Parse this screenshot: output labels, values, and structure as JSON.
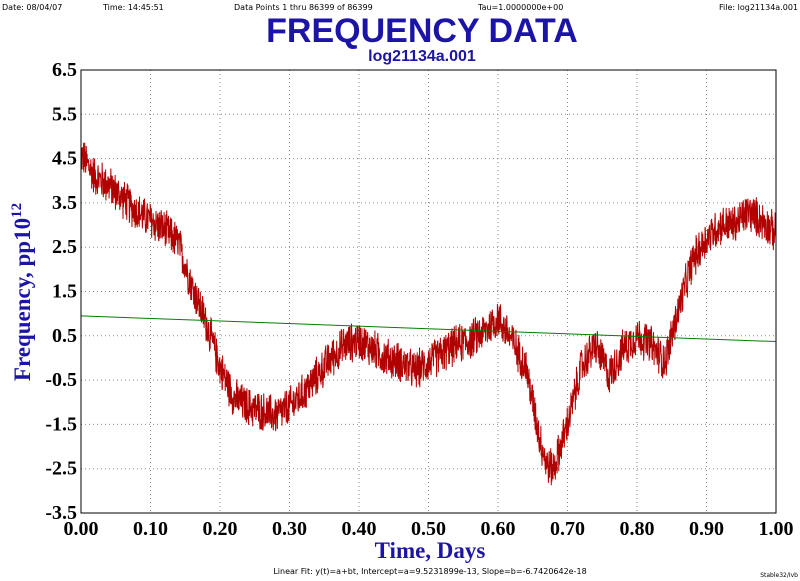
{
  "header": {
    "date": "Date: 08/04/07",
    "time": "Time: 14:45:51",
    "points": "Data Points 1 thru 86399 of 86399",
    "tau": "Tau=1.0000000e+00",
    "file": "File: log21134a.001"
  },
  "footer": {
    "fit": "Linear Fit: y(t)=a+bt, Intercept=a=9.5231899e-13, Slope=b=-6.7420642e-18",
    "credit": "Stable32/Ivb"
  },
  "colors": {
    "title": "#1c14a6",
    "data": "#b00000",
    "fit": "#008000",
    "grid": "#8a8a8a",
    "axis": "#000000"
  },
  "chart_data": {
    "type": "line",
    "title": "FREQUENCY DATA",
    "subtitle": "log21134a.001",
    "xlabel": "Time, Days",
    "ylabel": "Frequency, pp10",
    "ylabel_exponent": "12",
    "xlim": [
      0.0,
      1.0
    ],
    "ylim": [
      -3.5,
      6.5
    ],
    "x_ticks": [
      "0.00",
      "0.10",
      "0.20",
      "0.30",
      "0.40",
      "0.50",
      "0.60",
      "0.70",
      "0.80",
      "0.90",
      "1.00"
    ],
    "y_ticks": [
      "6.5",
      "5.5",
      "4.5",
      "3.5",
      "2.5",
      "1.5",
      "0.5",
      "-0.5",
      "-1.5",
      "-2.5",
      "-3.5"
    ],
    "grid": true,
    "series": [
      {
        "role": "data",
        "color": "#b00000",
        "x": [
          0.0,
          0.02,
          0.04,
          0.06,
          0.08,
          0.1,
          0.12,
          0.14,
          0.16,
          0.18,
          0.2,
          0.22,
          0.24,
          0.26,
          0.28,
          0.3,
          0.32,
          0.34,
          0.36,
          0.38,
          0.4,
          0.42,
          0.44,
          0.46,
          0.48,
          0.5,
          0.52,
          0.54,
          0.56,
          0.58,
          0.6,
          0.62,
          0.64,
          0.66,
          0.67,
          0.68,
          0.7,
          0.72,
          0.74,
          0.76,
          0.78,
          0.8,
          0.82,
          0.84,
          0.86,
          0.88,
          0.9,
          0.92,
          0.94,
          0.96,
          0.98,
          1.0
        ],
        "y": [
          4.6,
          4.1,
          3.9,
          3.6,
          3.3,
          3.1,
          2.9,
          2.6,
          1.6,
          0.8,
          -0.2,
          -0.9,
          -1.1,
          -1.2,
          -1.3,
          -1.1,
          -0.8,
          -0.4,
          0.0,
          0.3,
          0.4,
          0.2,
          0.0,
          -0.1,
          -0.3,
          -0.1,
          0.1,
          0.3,
          0.4,
          0.6,
          0.9,
          0.4,
          -0.2,
          -1.8,
          -2.4,
          -2.5,
          -1.5,
          -0.2,
          0.3,
          -0.4,
          0.2,
          0.5,
          0.3,
          -0.1,
          1.1,
          2.2,
          2.7,
          3.0,
          3.0,
          3.3,
          3.1,
          2.8
        ],
        "noise_amplitude": 0.5
      },
      {
        "role": "fit",
        "color": "#008000",
        "x": [
          0.0,
          1.0
        ],
        "y": [
          0.95,
          0.37
        ]
      }
    ]
  }
}
